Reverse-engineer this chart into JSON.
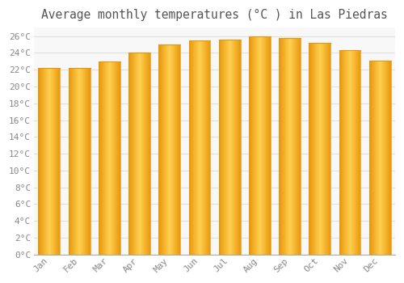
{
  "title": "Average monthly temperatures (°C ) in Las Piedras",
  "months": [
    "Jan",
    "Feb",
    "Mar",
    "Apr",
    "May",
    "Jun",
    "Jul",
    "Aug",
    "Sep",
    "Oct",
    "Nov",
    "Dec"
  ],
  "values": [
    22.2,
    22.2,
    23.0,
    24.0,
    25.0,
    25.5,
    25.6,
    26.0,
    25.8,
    25.2,
    24.3,
    23.1
  ],
  "bar_color_center": "#FFD050",
  "bar_color_edge": "#E8960A",
  "background_color": "#FFFFFF",
  "plot_bg_color": "#F8F8F8",
  "grid_color": "#E0E0E0",
  "ylim": [
    0,
    27
  ],
  "ytick_step": 2,
  "title_fontsize": 10.5,
  "tick_fontsize": 8,
  "tick_label_color": "#888888",
  "title_color": "#555555",
  "bar_width": 0.72
}
